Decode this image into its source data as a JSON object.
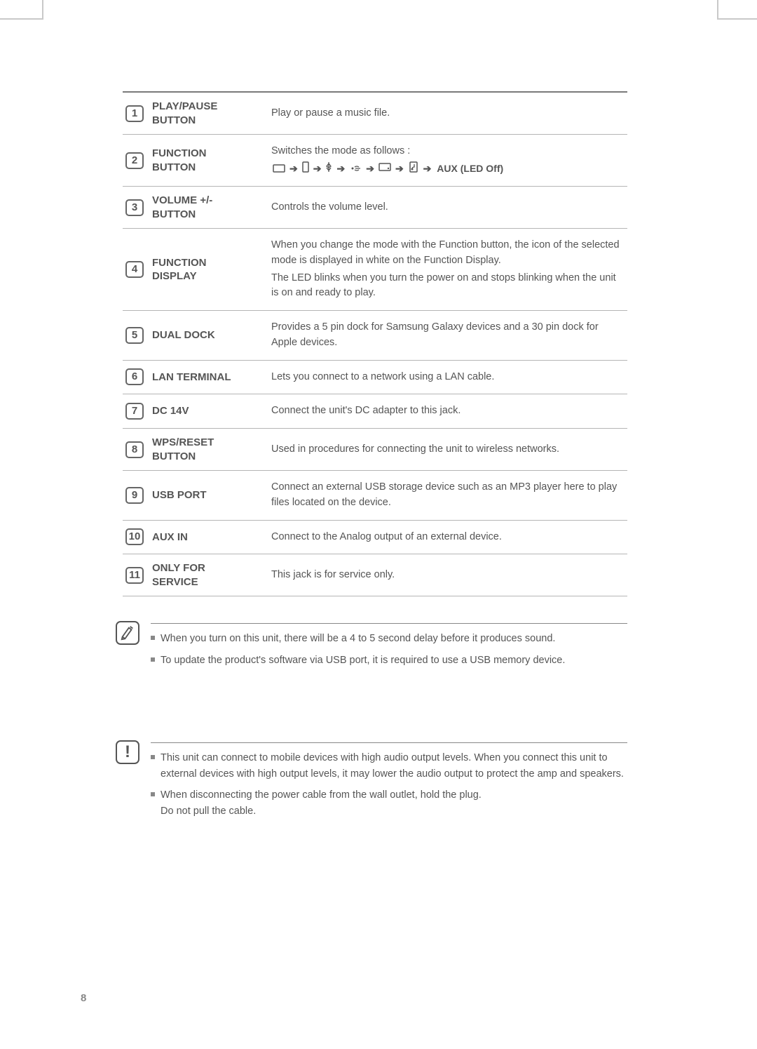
{
  "rows": [
    {
      "n": "1",
      "label": "PLAY/PAUSE BUTTON",
      "desc": [
        "Play or pause a music file."
      ]
    },
    {
      "n": "2",
      "label": "FUNCTION BUTTON",
      "desc_prefix": "Switches the mode as follows :",
      "mode_tail": "AUX (LED Off)"
    },
    {
      "n": "3",
      "label": "VOLUME +/- BUTTON",
      "desc": [
        "Controls the volume level."
      ]
    },
    {
      "n": "4",
      "label": "FUNCTION DISPLAY",
      "desc": [
        "When you change the mode with the Function button, the icon of the selected mode is displayed in white on the Function Display.",
        "The LED blinks when you turn the power on and stops blinking when the unit is on and ready to play."
      ]
    },
    {
      "n": "5",
      "label": "DUAL DOCK",
      "desc": [
        "Provides a 5 pin dock for Samsung Galaxy devices and a 30 pin dock for Apple devices."
      ]
    },
    {
      "n": "6",
      "label": "LAN TERMINAL",
      "desc": [
        "Lets you connect to a network using a LAN cable."
      ]
    },
    {
      "n": "7",
      "label": "DC 14V",
      "desc": [
        "Connect the unit's DC adapter to this jack."
      ]
    },
    {
      "n": "8",
      "label": "WPS/RESET BUTTON",
      "desc": [
        "Used in procedures for connecting the unit to wireless networks."
      ]
    },
    {
      "n": "9",
      "label": "USB PORT",
      "desc": [
        "Connect an external USB storage device such as an MP3 player here to play files located on the device."
      ]
    },
    {
      "n": "10",
      "label": "AUX IN",
      "desc": [
        "Connect to the Analog output of an external device."
      ]
    },
    {
      "n": "11",
      "label": "ONLY FOR SERVICE",
      "desc": [
        "This jack is for service only."
      ]
    }
  ],
  "notes": [
    "When you turn on this unit, there will be a 4 to 5 second delay before it produces sound.",
    "To update the product's software via USB port, it is required to use a USB memory device."
  ],
  "warnings": [
    "This unit can connect to mobile devices with high audio output levels. When you connect this unit to external devices with high output levels, it may lower the audio output to protect the amp and speakers.",
    "When disconnecting the power cable from the wall outlet, hold the plug.\nDo not pull the cable."
  ],
  "page_number": "8",
  "colors": {
    "text": "#555555",
    "border_top": "#7a7a7a",
    "row_border": "#b5b5b5",
    "bg": "#ffffff"
  }
}
